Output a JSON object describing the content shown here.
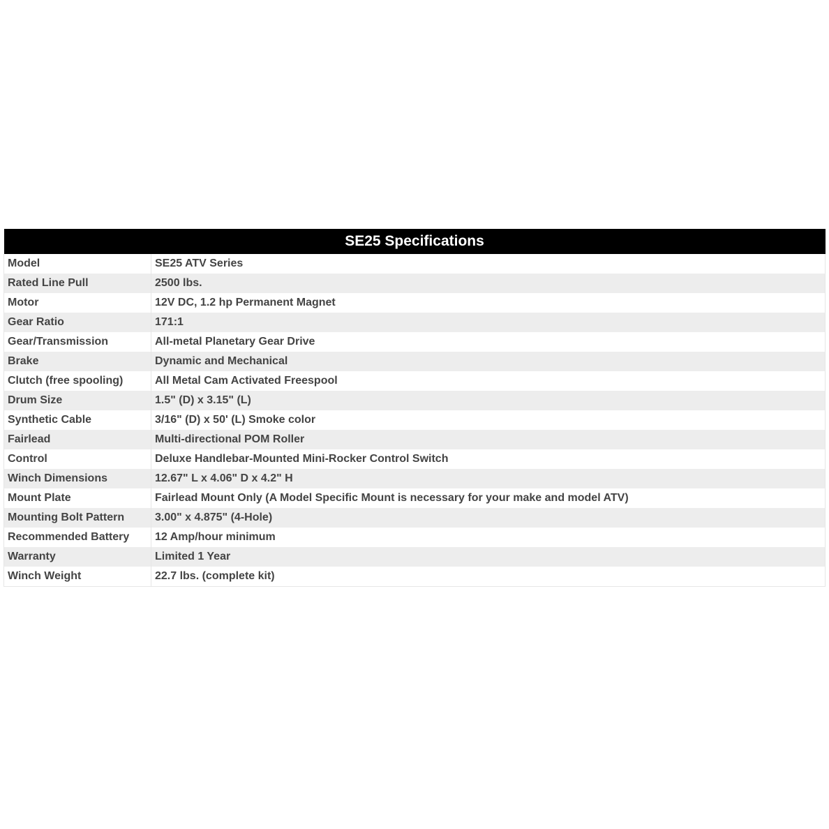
{
  "title": "SE25 Specifications",
  "rows": [
    {
      "label": "Model",
      "value": "SE25 ATV Series"
    },
    {
      "label": "Rated Line Pull",
      "value": "2500 lbs."
    },
    {
      "label": "Motor",
      "value": "12V DC, 1.2 hp Permanent Magnet"
    },
    {
      "label": "Gear Ratio",
      "value": "171:1"
    },
    {
      "label": "Gear/Transmission",
      "value": "All-metal Planetary Gear Drive"
    },
    {
      "label": "Brake",
      "value": "Dynamic and Mechanical"
    },
    {
      "label": "Clutch (free spooling)",
      "value": "All Metal Cam Activated Freespool"
    },
    {
      "label": "Drum Size",
      "value": "1.5\" (D) x 3.15\" (L)"
    },
    {
      "label": "Synthetic Cable",
      "value": "3/16\" (D) x 50' (L) Smoke color"
    },
    {
      "label": "Fairlead",
      "value": "Multi-directional POM Roller"
    },
    {
      "label": "Control",
      "value": "Deluxe Handlebar-Mounted Mini-Rocker Control Switch"
    },
    {
      "label": "Winch Dimensions",
      "value": "12.67\" L x 4.06\" D x 4.2\" H"
    },
    {
      "label": "Mount Plate",
      "value": "Fairlead Mount Only (A Model Specific Mount is necessary for your make and model ATV)"
    },
    {
      "label": "Mounting Bolt Pattern",
      "value": "3.00\" x 4.875\" (4-Hole)"
    },
    {
      "label": "Recommended Battery",
      "value": "12 Amp/hour minimum"
    },
    {
      "label": "Warranty",
      "value": "Limited 1 Year"
    },
    {
      "label": "Winch Weight",
      "value": "22.7 lbs. (complete kit)"
    }
  ]
}
